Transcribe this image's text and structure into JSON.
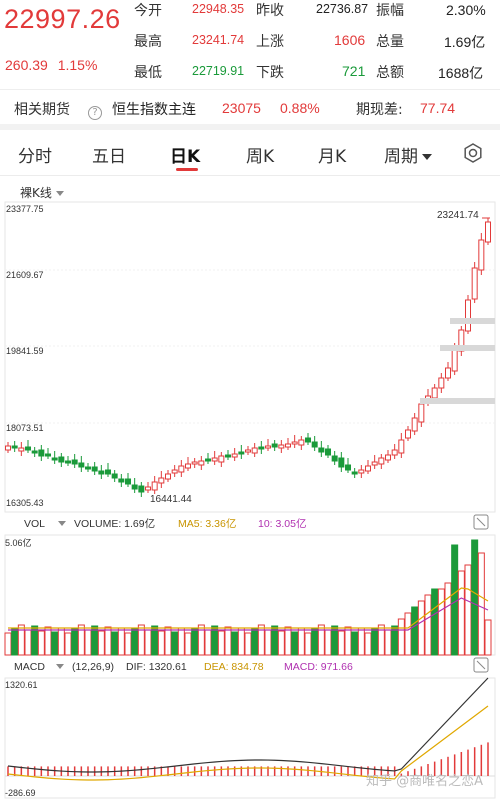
{
  "quote": {
    "price": "22997.26",
    "change": "260.39",
    "change_pct": "1.15%",
    "rows": [
      {
        "l1": "今开",
        "v1": "22948.35",
        "l2": "昨收",
        "v2": "22736.87",
        "l3": "振幅",
        "v3": "2.30%"
      },
      {
        "l1": "最高",
        "v1": "23241.74",
        "l2": "上涨",
        "v2": "1606",
        "l3": "总量",
        "v3": "1.69亿"
      },
      {
        "l1": "最低",
        "v1": "22719.91",
        "l2": "下跌",
        "v2": "721",
        "l3": "总额",
        "v3": "1688亿"
      }
    ]
  },
  "futures": {
    "label": "相关期货",
    "help": "?",
    "name": "恒生指数主连",
    "price": "23075",
    "pct": "0.88%",
    "basis_label": "期现差:",
    "basis_value": "77.74"
  },
  "tabs": [
    "分时",
    "五日",
    "日K",
    "周K",
    "月K",
    "周期"
  ],
  "active_tab": "日K",
  "kline": {
    "title": "裸K线",
    "axis": [
      "23377.75",
      "21609.67",
      "19841.59",
      "18073.51",
      "16305.43"
    ],
    "high_label": "23241.74",
    "low_label": "16441.44"
  },
  "vol": {
    "title": "VOL",
    "volume": "VOLUME: 1.69亿",
    "ma5": "MA5: 3.36亿",
    "ma10": "10: 3.05亿",
    "axis_top": "5.06亿"
  },
  "macd": {
    "title": "MACD",
    "params": "(12,26,9)",
    "dif": "DIF: 1320.61",
    "dea": "DEA: 834.78",
    "macd": "MACD: 971.66",
    "axis_top": "1320.61",
    "axis_bottom": "-286.69"
  },
  "watermark": "知乎 @商唯名之恋A",
  "colors": {
    "up": "#e23a3a",
    "down": "#1a9a3a",
    "ma5": "#e0a800",
    "ma10": "#b030b0"
  }
}
